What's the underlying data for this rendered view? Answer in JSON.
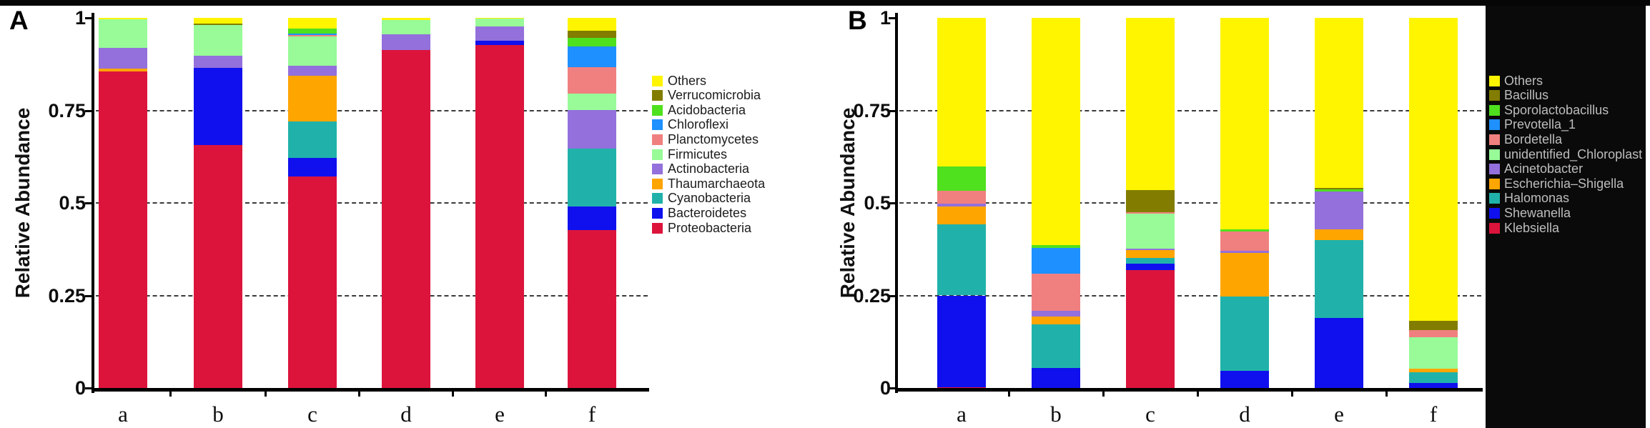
{
  "figure_kind": "two-panel stacked bar figure (relative abundance barplots)",
  "background_color": "#ffffff",
  "top_border_color": "#060606",
  "right_backdrop_color": "#0a0a0a",
  "chart_data": [
    {
      "type": "bar",
      "stacked": true,
      "panel_label": "A",
      "ylabel": "Relative Abundance",
      "ylim": [
        0,
        1
      ],
      "yticks": [
        1,
        0.75,
        0.5,
        0.25,
        0
      ],
      "ytick_labels": [
        "1",
        "0.75",
        "0.5",
        "0.25",
        "0"
      ],
      "gridlines": [
        0.75,
        0.5,
        0.25
      ],
      "grid_style": "dashed",
      "legend_position": "right",
      "legend_text_theme": "light",
      "categories": [
        "a",
        "b",
        "c",
        "d",
        "e",
        "f"
      ],
      "series": [
        {
          "name": "Proteobacteria",
          "color": "#DC143C",
          "values": [
            0.855,
            0.656,
            0.571,
            0.913,
            0.927,
            0.427
          ]
        },
        {
          "name": "Bacteroidetes",
          "color": "#1010EE",
          "values": [
            0,
            0.209,
            0.051,
            0,
            0.011,
            0.063
          ]
        },
        {
          "name": "Cyanobacteria",
          "color": "#20B2AA",
          "values": [
            0,
            0,
            0.098,
            0,
            0,
            0.157
          ]
        },
        {
          "name": "Thaumarchaeota",
          "color": "#FFA500",
          "values": [
            0.008,
            0,
            0.124,
            0,
            0,
            0
          ]
        },
        {
          "name": "Actinobacteria",
          "color": "#9370DB",
          "values": [
            0.056,
            0.033,
            0.027,
            0.042,
            0.039,
            0.104
          ]
        },
        {
          "name": "Firmicutes",
          "color": "#98FB98",
          "values": [
            0.077,
            0.083,
            0.079,
            0.04,
            0.021,
            0.044
          ]
        },
        {
          "name": "Planctomycetes",
          "color": "#F08080",
          "values": [
            0,
            0,
            0.004,
            0,
            0,
            0.072
          ]
        },
        {
          "name": "Chloroflexi",
          "color": "#1E90FF",
          "values": [
            0,
            0,
            0.004,
            0,
            0,
            0.056
          ]
        },
        {
          "name": "Acidobacteria",
          "color": "#4FE01E",
          "values": [
            0,
            0,
            0.014,
            0,
            0,
            0.023
          ]
        },
        {
          "name": "Verrucomicrobia",
          "color": "#827D00",
          "values": [
            0,
            0.004,
            0,
            0,
            0,
            0.019
          ]
        },
        {
          "name": "Others",
          "color": "#FFF500",
          "values": [
            0.004,
            0.015,
            0.028,
            0.005,
            0.002,
            0.035
          ]
        }
      ]
    },
    {
      "type": "bar",
      "stacked": true,
      "panel_label": "B",
      "ylabel": "Relative Abundance",
      "ylim": [
        0,
        1
      ],
      "yticks": [
        1,
        0.75,
        0.5,
        0.25,
        0
      ],
      "ytick_labels": [
        "1",
        "0.75",
        "0.5",
        "0.25",
        "0"
      ],
      "gridlines": [
        0.75,
        0.5,
        0.25
      ],
      "grid_style": "dashed",
      "legend_position": "right",
      "legend_text_theme": "dark",
      "categories": [
        "a",
        "b",
        "c",
        "d",
        "e",
        "f"
      ],
      "series": [
        {
          "name": "Klebsiella",
          "color": "#DC143C",
          "values": [
            0.002,
            0,
            0.319,
            0,
            0,
            0
          ]
        },
        {
          "name": "Shewanella",
          "color": "#1010EE",
          "values": [
            0.248,
            0.054,
            0.017,
            0.046,
            0.19,
            0.013
          ]
        },
        {
          "name": "Halomonas",
          "color": "#20B2AA",
          "values": [
            0.192,
            0.118,
            0.016,
            0.202,
            0.21,
            0.03
          ]
        },
        {
          "name": "Escherichia–Shigella",
          "color": "#FFA500",
          "values": [
            0.048,
            0.022,
            0.021,
            0.116,
            0.028,
            0.009
          ]
        },
        {
          "name": "Acinetobacter",
          "color": "#9370DB",
          "values": [
            0.009,
            0.015,
            0.004,
            0.007,
            0.102,
            0
          ]
        },
        {
          "name": "unidentified_Chloroplast",
          "color": "#98FB98",
          "values": [
            0,
            0,
            0.094,
            0,
            0,
            0.085
          ]
        },
        {
          "name": "Bordetella",
          "color": "#F08080",
          "values": [
            0.033,
            0.099,
            0.004,
            0.052,
            0,
            0.02
          ]
        },
        {
          "name": "Prevotella_1",
          "color": "#1E90FF",
          "values": [
            0,
            0.07,
            0,
            0,
            0,
            0
          ]
        },
        {
          "name": "Sporolactobacillus",
          "color": "#4FE01E",
          "values": [
            0.066,
            0.008,
            0,
            0.005,
            0.007,
            0
          ]
        },
        {
          "name": "Bacillus",
          "color": "#827D00",
          "values": [
            0,
            0,
            0.059,
            0,
            0.003,
            0.024
          ]
        },
        {
          "name": "Others",
          "color": "#FFF500",
          "values": [
            0.402,
            0.614,
            0.466,
            0.572,
            0.46,
            0.819
          ]
        }
      ]
    }
  ]
}
